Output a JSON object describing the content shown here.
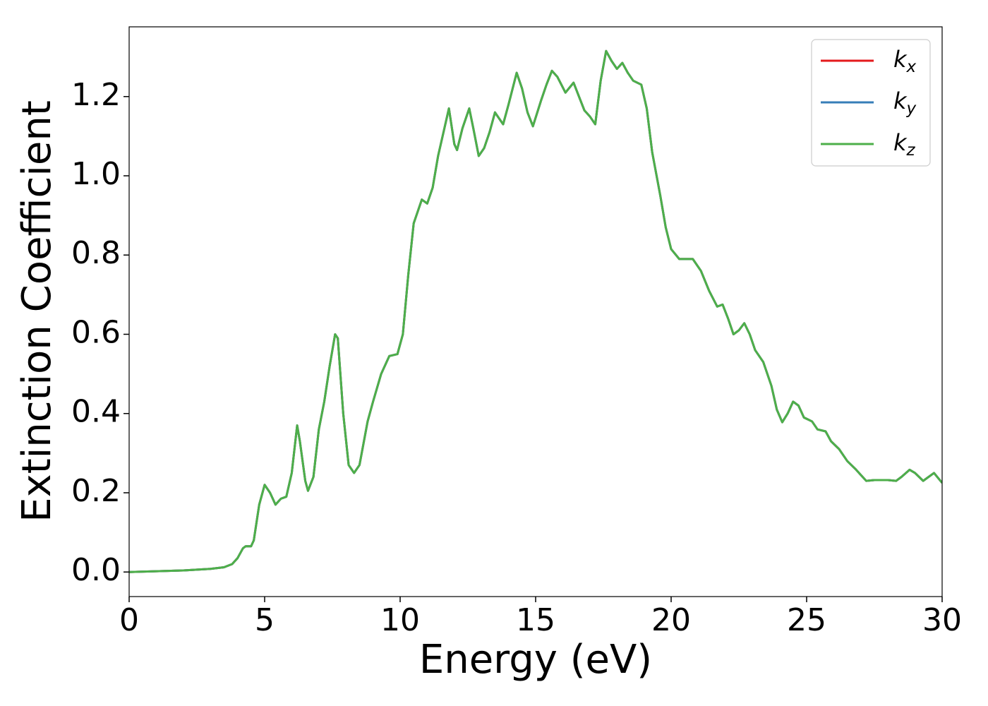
{
  "chart_data": {
    "type": "line",
    "xlabel": "Energy (eV)",
    "ylabel": "Extinction Coefficient",
    "x": [
      0,
      1,
      2,
      3,
      3.5,
      3.8,
      4.0,
      4.2,
      4.3,
      4.5,
      4.6,
      4.8,
      5.0,
      5.2,
      5.4,
      5.6,
      5.8,
      6.0,
      6.2,
      6.3,
      6.5,
      6.6,
      6.8,
      7.0,
      7.2,
      7.4,
      7.6,
      7.7,
      7.9,
      8.1,
      8.3,
      8.5,
      8.8,
      9.0,
      9.3,
      9.6,
      9.9,
      10.1,
      10.3,
      10.5,
      10.8,
      11.0,
      11.2,
      11.4,
      11.6,
      11.8,
      12.0,
      12.1,
      12.3,
      12.55,
      12.7,
      12.9,
      13.1,
      13.3,
      13.5,
      13.8,
      14.0,
      14.3,
      14.5,
      14.7,
      14.9,
      15.2,
      15.4,
      15.6,
      15.8,
      16.1,
      16.4,
      16.6,
      16.8,
      17.0,
      17.2,
      17.4,
      17.6,
      17.8,
      18.0,
      18.2,
      18.4,
      18.6,
      18.9,
      19.1,
      19.3,
      19.6,
      19.8,
      20.0,
      20.3,
      20.5,
      20.8,
      21.1,
      21.4,
      21.7,
      21.9,
      22.1,
      22.3,
      22.5,
      22.7,
      22.9,
      23.1,
      23.4,
      23.7,
      23.9,
      24.1,
      24.3,
      24.5,
      24.7,
      24.9,
      25.2,
      25.4,
      25.7,
      25.9,
      26.2,
      26.5,
      26.8,
      27.0,
      27.2,
      27.5,
      28.0,
      28.3,
      28.5,
      28.8,
      29.0,
      29.3,
      29.7,
      30
    ],
    "series": [
      {
        "name": "kx",
        "color": "#e41a1c",
        "values": [
          0.0,
          0.002,
          0.004,
          0.008,
          0.012,
          0.02,
          0.035,
          0.06,
          0.065,
          0.065,
          0.08,
          0.17,
          0.22,
          0.2,
          0.17,
          0.185,
          0.19,
          0.25,
          0.37,
          0.33,
          0.23,
          0.205,
          0.24,
          0.36,
          0.43,
          0.52,
          0.6,
          0.59,
          0.4,
          0.27,
          0.25,
          0.27,
          0.38,
          0.43,
          0.5,
          0.545,
          0.55,
          0.6,
          0.75,
          0.88,
          0.94,
          0.93,
          0.97,
          1.05,
          1.11,
          1.17,
          1.08,
          1.065,
          1.12,
          1.17,
          1.12,
          1.05,
          1.07,
          1.11,
          1.16,
          1.13,
          1.18,
          1.26,
          1.22,
          1.16,
          1.125,
          1.19,
          1.23,
          1.265,
          1.25,
          1.21,
          1.235,
          1.2,
          1.165,
          1.15,
          1.13,
          1.24,
          1.315,
          1.29,
          1.27,
          1.285,
          1.26,
          1.24,
          1.23,
          1.17,
          1.06,
          0.95,
          0.87,
          0.815,
          0.79,
          0.79,
          0.79,
          0.76,
          0.71,
          0.67,
          0.675,
          0.64,
          0.6,
          0.61,
          0.628,
          0.6,
          0.56,
          0.53,
          0.47,
          0.41,
          0.378,
          0.4,
          0.43,
          0.42,
          0.39,
          0.38,
          0.36,
          0.355,
          0.33,
          0.31,
          0.28,
          0.26,
          0.245,
          0.23,
          0.232,
          0.232,
          0.23,
          0.24,
          0.258,
          0.25,
          0.23,
          0.25,
          0.225
        ]
      },
      {
        "name": "ky",
        "color": "#377eb8",
        "values": [
          0.0,
          0.002,
          0.004,
          0.008,
          0.012,
          0.02,
          0.035,
          0.06,
          0.065,
          0.065,
          0.08,
          0.17,
          0.22,
          0.2,
          0.17,
          0.185,
          0.19,
          0.25,
          0.37,
          0.33,
          0.23,
          0.205,
          0.24,
          0.36,
          0.43,
          0.52,
          0.6,
          0.59,
          0.4,
          0.27,
          0.25,
          0.27,
          0.38,
          0.43,
          0.5,
          0.545,
          0.55,
          0.6,
          0.75,
          0.88,
          0.94,
          0.93,
          0.97,
          1.05,
          1.11,
          1.17,
          1.08,
          1.065,
          1.12,
          1.17,
          1.12,
          1.05,
          1.07,
          1.11,
          1.16,
          1.13,
          1.18,
          1.26,
          1.22,
          1.16,
          1.125,
          1.19,
          1.23,
          1.265,
          1.25,
          1.21,
          1.235,
          1.2,
          1.165,
          1.15,
          1.13,
          1.24,
          1.315,
          1.29,
          1.27,
          1.285,
          1.26,
          1.24,
          1.23,
          1.17,
          1.06,
          0.95,
          0.87,
          0.815,
          0.79,
          0.79,
          0.79,
          0.76,
          0.71,
          0.67,
          0.675,
          0.64,
          0.6,
          0.61,
          0.628,
          0.6,
          0.56,
          0.53,
          0.47,
          0.41,
          0.378,
          0.4,
          0.43,
          0.42,
          0.39,
          0.38,
          0.36,
          0.355,
          0.33,
          0.31,
          0.28,
          0.26,
          0.245,
          0.23,
          0.232,
          0.232,
          0.23,
          0.24,
          0.258,
          0.25,
          0.23,
          0.25,
          0.225
        ]
      },
      {
        "name": "kz",
        "color": "#4daf4a",
        "values": [
          0.0,
          0.002,
          0.004,
          0.008,
          0.012,
          0.02,
          0.035,
          0.06,
          0.065,
          0.065,
          0.08,
          0.17,
          0.22,
          0.2,
          0.17,
          0.185,
          0.19,
          0.25,
          0.37,
          0.33,
          0.23,
          0.205,
          0.24,
          0.36,
          0.43,
          0.52,
          0.6,
          0.59,
          0.4,
          0.27,
          0.25,
          0.27,
          0.38,
          0.43,
          0.5,
          0.545,
          0.55,
          0.6,
          0.75,
          0.88,
          0.94,
          0.93,
          0.97,
          1.05,
          1.11,
          1.17,
          1.08,
          1.065,
          1.12,
          1.17,
          1.12,
          1.05,
          1.07,
          1.11,
          1.16,
          1.13,
          1.18,
          1.26,
          1.22,
          1.16,
          1.125,
          1.19,
          1.23,
          1.265,
          1.25,
          1.21,
          1.235,
          1.2,
          1.165,
          1.15,
          1.13,
          1.24,
          1.315,
          1.29,
          1.27,
          1.285,
          1.26,
          1.24,
          1.23,
          1.17,
          1.06,
          0.95,
          0.87,
          0.815,
          0.79,
          0.79,
          0.79,
          0.76,
          0.71,
          0.67,
          0.675,
          0.64,
          0.6,
          0.61,
          0.628,
          0.6,
          0.56,
          0.53,
          0.47,
          0.41,
          0.378,
          0.4,
          0.43,
          0.42,
          0.39,
          0.38,
          0.36,
          0.355,
          0.33,
          0.31,
          0.28,
          0.26,
          0.245,
          0.23,
          0.232,
          0.232,
          0.23,
          0.24,
          0.258,
          0.25,
          0.23,
          0.25,
          0.225
        ]
      }
    ],
    "xlim": [
      0,
      30
    ],
    "xticks": [
      0,
      5,
      10,
      15,
      20,
      25,
      30
    ],
    "ylim": [
      -0.062,
      1.376
    ],
    "yticks": [
      {
        "value": 0,
        "label": "0.0"
      },
      0.2,
      0.4,
      0.6,
      0.8,
      {
        "value": 1,
        "label": "1.0"
      },
      1.2
    ],
    "legend": "upper right",
    "grid": false
  }
}
